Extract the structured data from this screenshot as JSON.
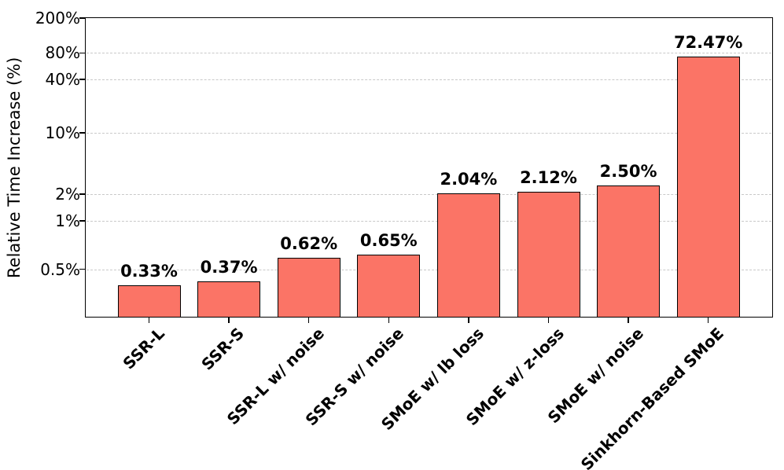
{
  "chart_data": {
    "type": "bar",
    "title": "",
    "xlabel": "",
    "ylabel": "Relative Time Increase (%)",
    "categories": [
      "SSR-L",
      "SSR-S",
      "SSR-L w/ noise",
      "SSR-S w/ noise",
      "SMoE w/ lb loss",
      "SMoE w/ z-loss",
      "SMoE w/ noise",
      "Sinkhorn-Based SMoE"
    ],
    "values": [
      0.33,
      0.37,
      0.62,
      0.65,
      2.04,
      2.12,
      2.5,
      72.47
    ],
    "value_labels": [
      "0.33%",
      "0.37%",
      "0.62%",
      "0.65%",
      "2.04%",
      "2.12%",
      "2.50%",
      "72.47%"
    ],
    "y_ticks": [
      {
        "label": "200%",
        "value": 200
      },
      {
        "label": "80%",
        "value": 80
      },
      {
        "label": "40%",
        "value": 40
      },
      {
        "label": "10%",
        "value": 10
      },
      {
        "label": "2%",
        "value": 2
      },
      {
        "label": "1%",
        "value": 1
      },
      {
        "label": "0.5%",
        "value": 0.5
      }
    ],
    "ylim": [
      0,
      200
    ],
    "y_scale": "log above 1%, linear below 1%",
    "grid": "horizontal dashed",
    "legend": "none",
    "bar_color": "#FB7466",
    "bar_edge_color": "#000000",
    "grid_color": "#c9c9c9"
  }
}
